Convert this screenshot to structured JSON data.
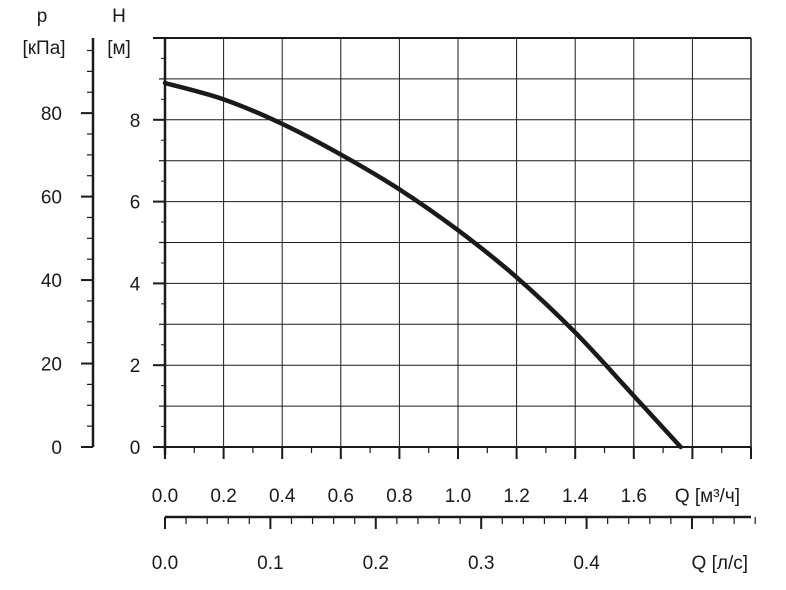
{
  "chart_data": {
    "type": "line",
    "series": [
      {
        "x": [
          0.0,
          0.2,
          0.4,
          0.6,
          0.8,
          1.0,
          1.2,
          1.4,
          1.6,
          1.76
        ],
        "y": [
          8.9,
          8.5,
          7.9,
          7.15,
          6.3,
          5.3,
          4.15,
          2.8,
          1.25,
          0.0
        ]
      }
    ],
    "grid": true,
    "h_axis": {
      "label_top": "H",
      "label_unit": "[м]",
      "range": [
        0,
        10
      ],
      "ticks": [
        0,
        2,
        4,
        6,
        8
      ],
      "tick_labels": [
        "0",
        "2",
        "4",
        "6",
        "8"
      ]
    },
    "p_axis": {
      "label_top": "p",
      "label_unit": "[кПа]",
      "range_kpa": [
        0,
        98
      ],
      "ticks": [
        0,
        20,
        40,
        60,
        80
      ],
      "tick_labels": [
        "0",
        "20",
        "40",
        "60",
        "80"
      ],
      "minor_step": 5
    },
    "q_m3h_axis": {
      "label": "Q [м³/ч]",
      "range": [
        0,
        2.0
      ],
      "ticks": [
        0.0,
        0.2,
        0.4,
        0.6,
        0.8,
        1.0,
        1.2,
        1.4,
        1.6
      ],
      "tick_labels": [
        "0.0",
        "0.2",
        "0.4",
        "0.6",
        "0.8",
        "1.0",
        "1.2",
        "1.4",
        "1.6"
      ]
    },
    "q_ls_axis": {
      "label": "Q [л/с]",
      "range": [
        0,
        0.556
      ],
      "ticks": [
        0.0,
        0.1,
        0.2,
        0.3,
        0.4
      ],
      "tick_labels": [
        "0.0",
        "0.1",
        "0.2",
        "0.3",
        "0.4"
      ],
      "minor_step": 0.02
    },
    "colors": {
      "line": "#1a1a1a",
      "grid": "#1a1a1a",
      "background": "#ffffff"
    }
  }
}
